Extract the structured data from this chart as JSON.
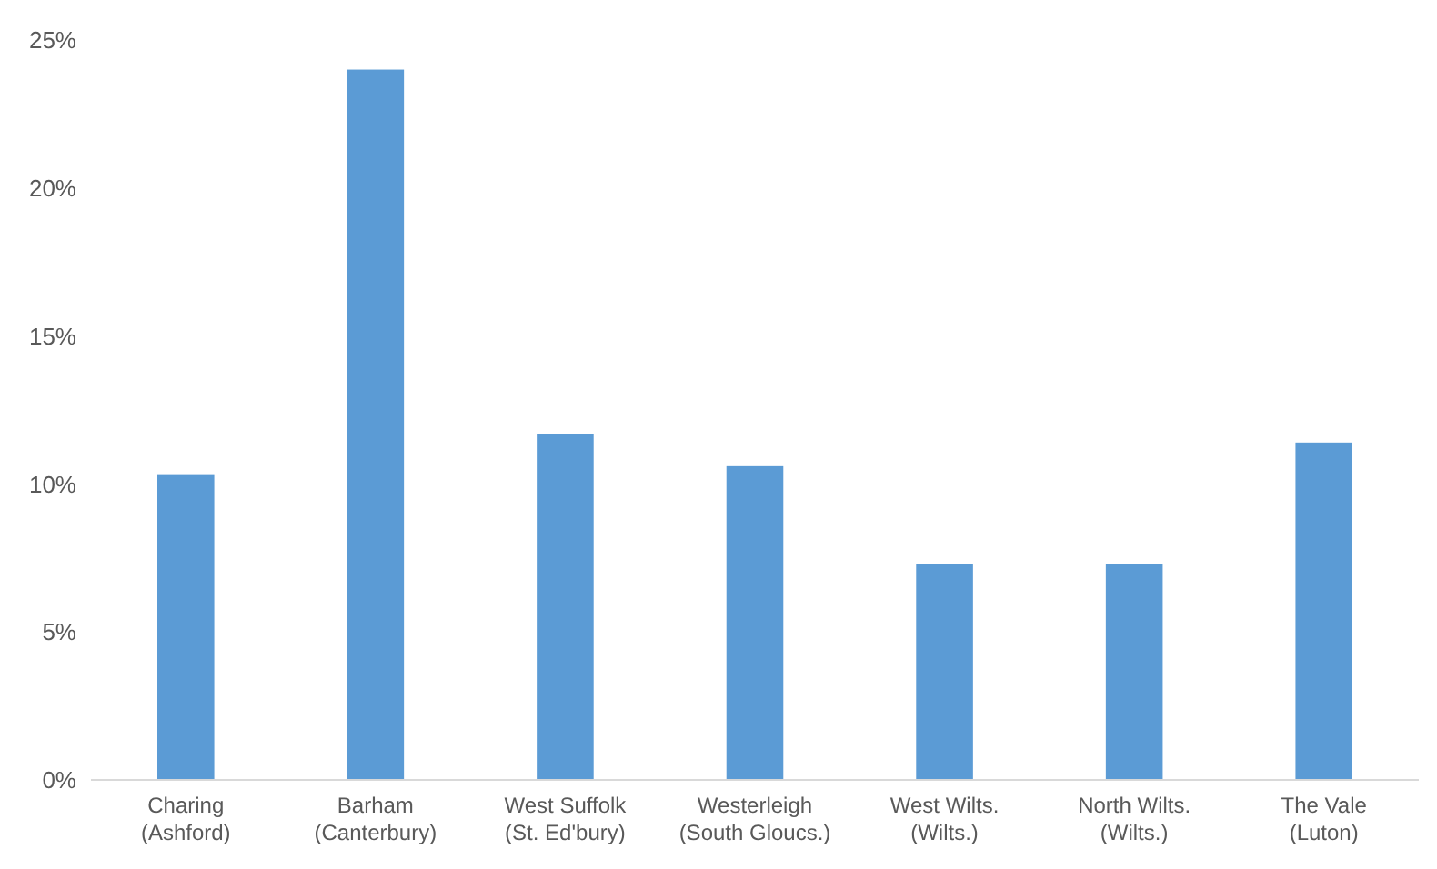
{
  "chart_data": {
    "type": "bar",
    "categories": [
      "Charing (Ashford)",
      "Barham (Canterbury)",
      "West Suffolk (St. Ed'bury)",
      "Westerleigh (South Gloucs.)",
      "West Wilts. (Wilts.)",
      "North Wilts. (Wilts.)",
      "The Vale (Luton)"
    ],
    "values": [
      10.3,
      24.0,
      11.7,
      10.6,
      7.3,
      7.3,
      11.4
    ],
    "color": "#5b9bd5",
    "ylim": [
      0,
      25
    ],
    "yticks": [
      {
        "value": 0,
        "label": "0%"
      },
      {
        "value": 5,
        "label": "5%"
      },
      {
        "value": 10,
        "label": "10%"
      },
      {
        "value": 15,
        "label": "15%"
      },
      {
        "value": 20,
        "label": "20%"
      },
      {
        "value": 25,
        "label": "25%"
      }
    ],
    "grid": false
  }
}
